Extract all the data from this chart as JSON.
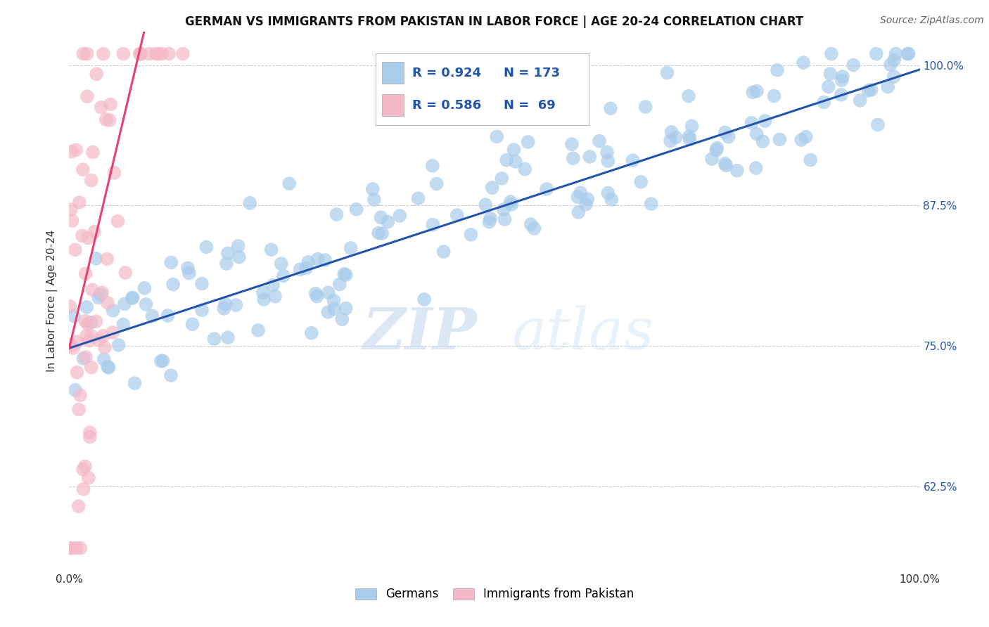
{
  "title": "GERMAN VS IMMIGRANTS FROM PAKISTAN IN LABOR FORCE | AGE 20-24 CORRELATION CHART",
  "source": "Source: ZipAtlas.com",
  "ylabel": "In Labor Force | Age 20-24",
  "xlim": [
    0.0,
    1.0
  ],
  "ylim": [
    0.55,
    1.03
  ],
  "yticks": [
    0.625,
    0.75,
    0.875,
    1.0
  ],
  "ytick_labels": [
    "62.5%",
    "75.0%",
    "87.5%",
    "100.0%"
  ],
  "xtick_labels": [
    "0.0%",
    "100.0%"
  ],
  "legend_blue_R": "R = 0.924",
  "legend_blue_N": "N = 173",
  "legend_pink_R": "R = 0.586",
  "legend_pink_N": "N =  69",
  "blue_color": "#a8ccec",
  "pink_color": "#f5b8c8",
  "blue_line_color": "#2255aa",
  "pink_line_color": "#e84070",
  "blue_R_color": "#2255aa",
  "pink_R_color": "#e84070",
  "watermark_zip": "ZIP",
  "watermark_atlas": "atlas",
  "background_color": "#ffffff",
  "grid_color": "#cccccc",
  "title_fontsize": 12,
  "source_fontsize": 10,
  "ylabel_fontsize": 11,
  "tick_fontsize": 11,
  "blue_n": 173,
  "pink_n": 69,
  "blue_R": 0.924,
  "pink_R": 0.586,
  "blue_intercept": 0.748,
  "blue_slope": 0.248,
  "pink_intercept": 0.748,
  "pink_slope": 3.2,
  "blue_scatter_seed": 42,
  "pink_scatter_seed": 7
}
